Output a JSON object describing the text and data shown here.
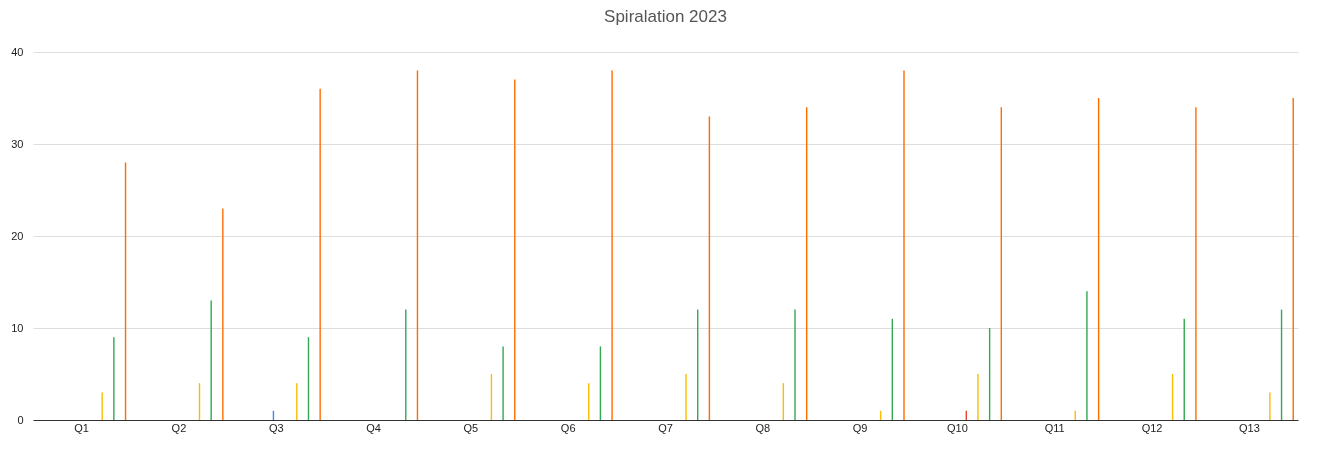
{
  "chart_data": {
    "type": "bar",
    "title": "Spiralation 2023",
    "categories": [
      "Q1",
      "Q2",
      "Q3",
      "Q4",
      "Q5",
      "Q6",
      "Q7",
      "Q8",
      "Q9",
      "Q10",
      "Q11",
      "Q12",
      "Q13"
    ],
    "series": [
      {
        "color": "#4285f4",
        "values": [
          0,
          0,
          1,
          0,
          0,
          0,
          0,
          0,
          0,
          0,
          0,
          0,
          0
        ]
      },
      {
        "color": "#ea4335",
        "values": [
          0,
          0,
          0,
          0,
          0,
          0,
          0,
          0,
          0,
          1,
          0,
          0,
          0
        ]
      },
      {
        "color": "#fbbc04",
        "values": [
          3,
          4,
          4,
          0,
          5,
          4,
          5,
          4,
          1,
          5,
          1,
          5,
          3
        ]
      },
      {
        "color": "#34a853",
        "values": [
          9,
          13,
          9,
          12,
          8,
          8,
          12,
          12,
          11,
          10,
          14,
          11,
          12
        ]
      },
      {
        "color": "#ff6d01",
        "values": [
          28,
          23,
          36,
          38,
          37,
          38,
          33,
          34,
          38,
          34,
          35,
          34,
          35
        ]
      }
    ],
    "ylim": [
      0,
      40
    ],
    "yticks": [
      0,
      10,
      20,
      30,
      40
    ],
    "grid": "y",
    "legend": false
  }
}
